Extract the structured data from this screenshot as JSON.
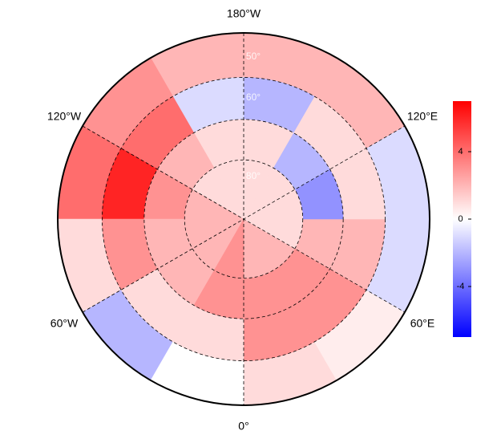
{
  "chart_data": {
    "type": "polar-heatmap",
    "lon_edges": [
      0,
      30,
      60,
      90,
      120,
      150,
      180,
      210,
      240,
      270,
      300,
      330,
      360
    ],
    "lat_edges": [
      45,
      55,
      65,
      75,
      90
    ],
    "values": [
      [
        1,
        3,
        3,
        2
      ],
      [
        0.5,
        3,
        3,
        2
      ],
      [
        -1,
        2,
        2,
        1
      ],
      [
        -1,
        1,
        -3,
        1
      ],
      [
        2,
        1,
        -2,
        1
      ],
      [
        2,
        -2,
        1,
        1
      ],
      [
        2,
        -1,
        1,
        1
      ],
      [
        3,
        4,
        2,
        1
      ],
      [
        4,
        6,
        3,
        2
      ],
      [
        1,
        3,
        2,
        2
      ],
      [
        -2,
        1,
        2,
        2
      ],
      [
        0,
        1,
        3,
        3
      ]
    ],
    "colorscale": [
      "#0000ff",
      "#ffffff",
      "#ff0000"
    ],
    "clim": [
      -7,
      7
    ],
    "cticks": [
      4,
      0,
      -4
    ],
    "meridian_labels": [
      "180°W",
      "120°W",
      "120°E",
      "60°W",
      "60°E",
      "0°"
    ],
    "parallel_labels": [
      "50°",
      "60°",
      "80°"
    ]
  }
}
